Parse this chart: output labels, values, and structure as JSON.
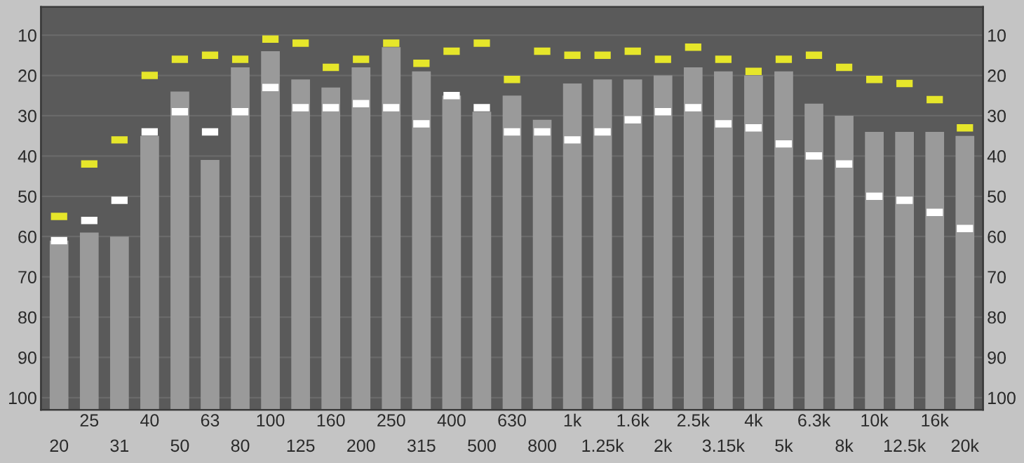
{
  "chart_data": {
    "type": "bar",
    "categories": [
      "20",
      "25",
      "31",
      "40",
      "50",
      "63",
      "80",
      "100",
      "125",
      "160",
      "200",
      "250",
      "315",
      "400",
      "500",
      "630",
      "800",
      "1k",
      "1.25k",
      "1.6k",
      "2k",
      "2.5k",
      "3.15k",
      "4k",
      "5k",
      "6.3k",
      "8k",
      "10k",
      "12.5k",
      "16k",
      "20k"
    ],
    "series": [
      {
        "color": "#9a9a9a",
        "values": [
          -42,
          -44,
          -43,
          -68,
          -79,
          -62,
          -85,
          -89,
          -82,
          -80,
          -85,
          -90,
          -84,
          -78,
          -74,
          -78,
          -72,
          -81,
          -82,
          -82,
          -83,
          -85,
          -84,
          -83,
          -84,
          -76,
          -73,
          -69,
          -69,
          -69,
          -68
        ],
        "base": [
          103,
          103,
          103,
          103,
          103,
          103,
          103,
          103,
          103,
          103,
          103,
          103,
          103,
          103,
          103,
          103,
          103,
          103,
          103,
          103,
          103,
          103,
          103,
          103,
          103,
          103,
          103,
          103,
          103,
          103,
          103
        ]
      },
      {
        "type": "scatter",
        "marker": "square",
        "color": "#ffffff",
        "values": [
          61,
          56,
          51,
          34,
          29,
          34,
          29,
          23,
          28,
          28,
          27,
          28,
          32,
          25,
          28,
          34,
          34,
          36,
          34,
          31,
          29,
          28,
          32,
          33,
          37,
          40,
          42,
          50,
          51,
          54,
          58
        ]
      },
      {
        "type": "scatter",
        "marker": "square",
        "color": "#e6e62a",
        "values": [
          55,
          42,
          36,
          20,
          16,
          15,
          16,
          11,
          12,
          18,
          16,
          12,
          17,
          14,
          12,
          21,
          14,
          15,
          15,
          14,
          16,
          13,
          16,
          19,
          16,
          15,
          18,
          21,
          22,
          26,
          33
        ]
      }
    ],
    "ylim": [
      103,
      3
    ],
    "yticks": [
      10,
      20,
      30,
      40,
      50,
      60,
      70,
      80,
      90,
      100
    ],
    "y2lim": [
      103,
      3
    ],
    "y2ticks": [
      10,
      20,
      30,
      40,
      50,
      60,
      70,
      80,
      90,
      100
    ],
    "grid": "y"
  }
}
